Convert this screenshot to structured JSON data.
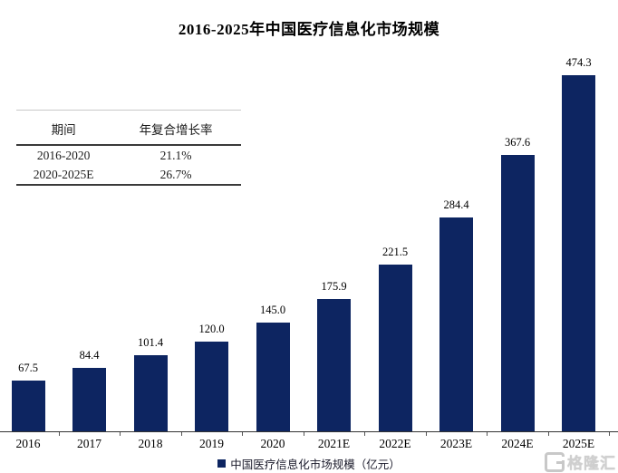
{
  "title": "2016-2025年中国医疗信息化市场规模",
  "cagr_table": {
    "headers": [
      "期间",
      "年复合增长率"
    ],
    "rows": [
      [
        "2016-2020",
        "21.1%"
      ],
      [
        "2020-2025E",
        "26.7%"
      ]
    ]
  },
  "chart_data": {
    "type": "bar",
    "title": "2016-2025年中国医疗信息化市场规模",
    "categories": [
      "2016",
      "2017",
      "2018",
      "2019",
      "2020",
      "2021E",
      "2022E",
      "2023E",
      "2024E",
      "2025E"
    ],
    "values": [
      67.5,
      84.4,
      101.4,
      120.0,
      145.0,
      175.9,
      221.5,
      284.4,
      367.6,
      474.3
    ],
    "value_labels": [
      "67.5",
      "84.4",
      "101.4",
      "120.0",
      "145.0",
      "175.9",
      "221.5",
      "284.4",
      "367.6",
      "474.3"
    ],
    "xlabel": "",
    "ylabel": "",
    "ylim": [
      0,
      480
    ],
    "grid": false,
    "bar_color": "#0d2561",
    "data_labels_shown": true,
    "legend_position": "bottom"
  },
  "legend": {
    "label": "中国医疗信息化市场规模（亿元）",
    "swatch_color": "#0d2561"
  },
  "watermark": {
    "text": "格隆汇"
  }
}
